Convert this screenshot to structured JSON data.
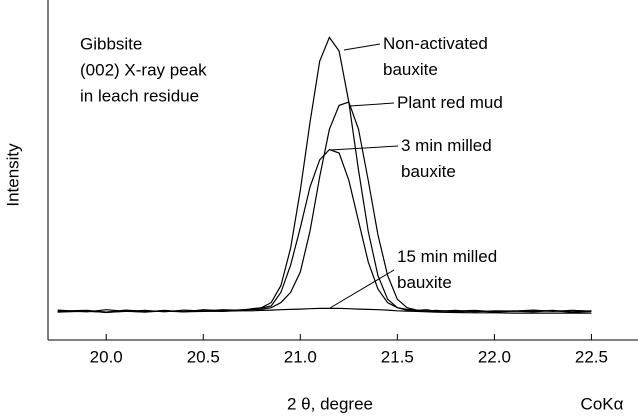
{
  "chart_data": {
    "type": "line",
    "annotation_lines": [
      "Gibbsite",
      "(002) X-ray peak",
      "in leach residue"
    ],
    "xlabel": "2 θ, degree",
    "xlabel_note": "CoKα",
    "ylabel": "Intensity",
    "xlim": [
      19.7,
      22.74
    ],
    "ylim": [
      0,
      100
    ],
    "xticks": [
      {
        "value": 20,
        "label": "20.0"
      },
      20.5,
      {
        "value": 21,
        "label": "21.0"
      },
      21.5,
      {
        "value": 22,
        "label": "22.0"
      },
      22.5
    ],
    "x": [
      19.75,
      19.9,
      20.0,
      20.1,
      20.2,
      20.3,
      20.4,
      20.5,
      20.6,
      20.7,
      20.75,
      20.8,
      20.85,
      20.9,
      20.95,
      21.0,
      21.05,
      21.1,
      21.15,
      21.2,
      21.25,
      21.3,
      21.35,
      21.4,
      21.45,
      21.5,
      21.55,
      21.6,
      21.65,
      21.7,
      21.8,
      21.9,
      22.0,
      22.1,
      22.2,
      22.3,
      22.4,
      22.5
    ],
    "series": [
      {
        "name": "Non-activated bauxite",
        "color": "#000000",
        "values": [
          8.8,
          8.3,
          8.9,
          8.4,
          8.7,
          8.3,
          8.8,
          8.5,
          8.9,
          8.7,
          9.2,
          9.5,
          11,
          16,
          27,
          44,
          64,
          82,
          89,
          85,
          70,
          50,
          32,
          19,
          12,
          9.5,
          9,
          8.7,
          8.9,
          8.4,
          8.7,
          8.3,
          8.6,
          8.5,
          8.8,
          8.4,
          8.7,
          8.5
        ]
      },
      {
        "name": "Plant red mud",
        "color": "#000000",
        "values": [
          8.2,
          8.6,
          8.1,
          8.5,
          8.2,
          8.7,
          8.3,
          8.6,
          8.4,
          8.8,
          8.9,
          9.1,
          9.5,
          11,
          14,
          20,
          32,
          48,
          62,
          69,
          70,
          62,
          47,
          31,
          19,
          12,
          9.5,
          8.8,
          8.5,
          8.7,
          8.3,
          8.6,
          8.2,
          8.5,
          8.3,
          8.6,
          8.2,
          8.4
        ]
      },
      {
        "name": "3 min milled bauxite",
        "color": "#000000",
        "values": [
          8.5,
          8.7,
          8.2,
          8.8,
          8.4,
          8.6,
          8.3,
          8.9,
          8.6,
          8.9,
          9.1,
          9.4,
          10,
          14,
          22,
          33,
          45,
          53,
          56,
          55,
          47,
          35,
          23,
          15,
          11,
          9.5,
          8.8,
          8.6,
          8.4,
          8.6,
          8.5,
          8.7,
          8.3,
          8.6,
          8.4,
          8.7,
          8.3,
          8.6
        ]
      },
      {
        "name": "15 min milled bauxite",
        "color": "#000000",
        "values": [
          8.3,
          8.4,
          8.2,
          8.4,
          8.3,
          8.5,
          8.3,
          8.4,
          8.5,
          8.6,
          8.6,
          8.7,
          8.8,
          8.9,
          9.0,
          9.1,
          9.2,
          9.3,
          9.3,
          9.3,
          9.2,
          9.1,
          9.0,
          8.9,
          8.8,
          8.6,
          8.5,
          8.4,
          8.3,
          8.2,
          8.1,
          8.0,
          8.0,
          7.9,
          7.9,
          7.9,
          7.9,
          7.9
        ]
      }
    ]
  }
}
